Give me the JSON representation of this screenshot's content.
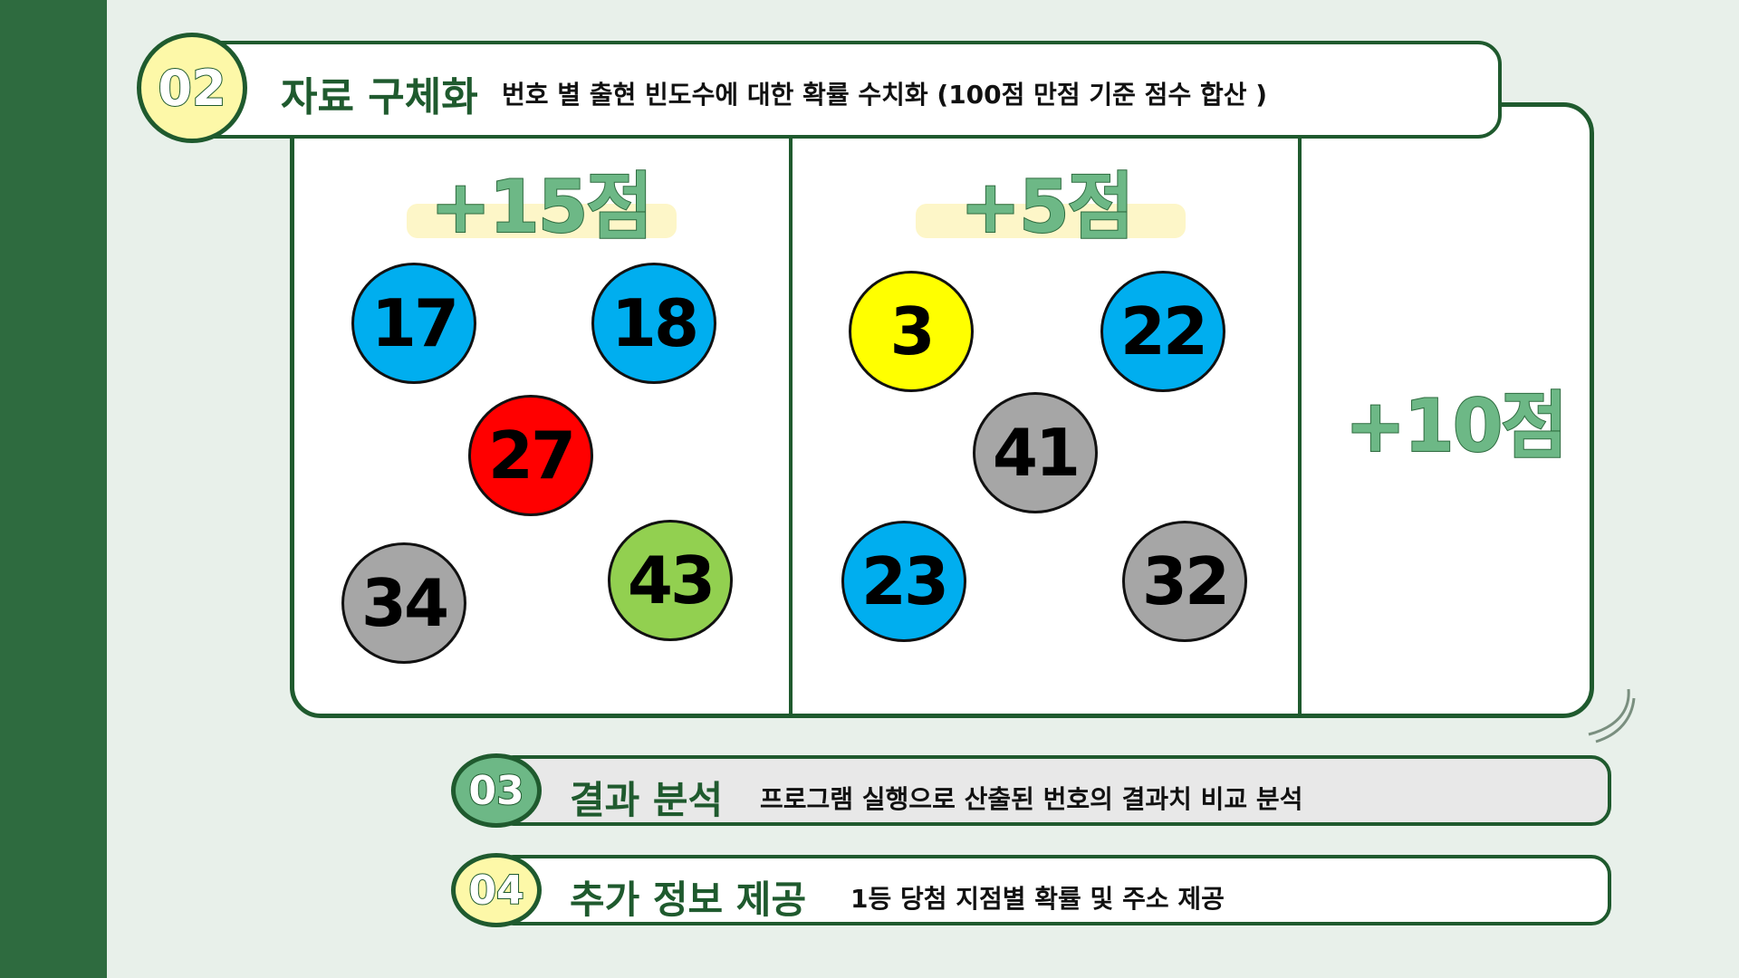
{
  "colors": {
    "accent_green": "#1f5a2e",
    "badge_yellow": "#fdf8a8",
    "badge_green": "#6db886",
    "score_green": "#6db886",
    "ball_blue": "#00aeef",
    "ball_red": "#ff0000",
    "ball_yellow": "#ffff00",
    "ball_gray": "#a6a6a6",
    "ball_green": "#92d050"
  },
  "step02": {
    "number": "02",
    "title": "자료 구체화",
    "description": "번호 별 출현 빈도수에 대한 확률 수치화 (100점 만점 기준 점수 합산 )"
  },
  "panel": {
    "columns": [
      {
        "score": "+15점",
        "balls": [
          {
            "number": "17",
            "color": "blue"
          },
          {
            "number": "18",
            "color": "blue"
          },
          {
            "number": "27",
            "color": "red"
          },
          {
            "number": "34",
            "color": "gray"
          },
          {
            "number": "43",
            "color": "green"
          }
        ]
      },
      {
        "score": "+5점",
        "balls": [
          {
            "number": "3",
            "color": "yellow"
          },
          {
            "number": "22",
            "color": "blue"
          },
          {
            "number": "41",
            "color": "gray"
          },
          {
            "number": "23",
            "color": "blue"
          },
          {
            "number": "32",
            "color": "gray"
          }
        ]
      },
      {
        "score": "+10점",
        "balls": []
      }
    ]
  },
  "step03": {
    "number": "03",
    "title": "결과 분석",
    "description": "프로그램 실행으로 산출된 번호의 결과치 비교 분석"
  },
  "step04": {
    "number": "04",
    "title": "추가 정보 제공",
    "description": "1등 당첨 지점별 확률 및 주소 제공"
  }
}
